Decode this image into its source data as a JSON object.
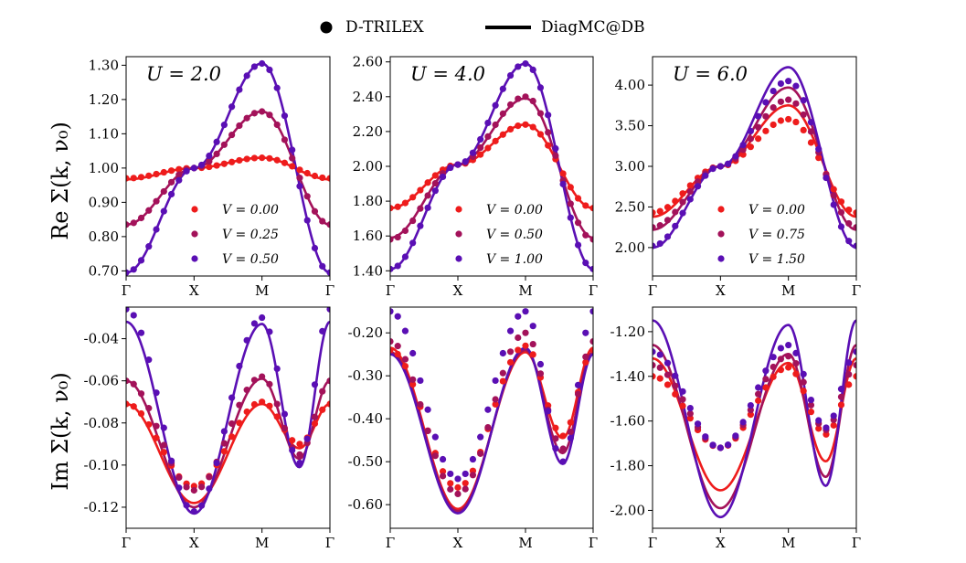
{
  "legend_top": {
    "markers_label": "D-TRILEX",
    "lines_label": "DiagMC@DB"
  },
  "row_labels": {
    "top": "Re Σ(k, ν₀)",
    "bottom": "Im Σ(k, ν₀)"
  },
  "colors": {
    "low": "#ee1c1c",
    "mid": "#a3125a",
    "high": "#5a0fb4"
  },
  "chart_data": [
    {
      "type": "line",
      "panel": "Re U=2.0",
      "annotation": "U = 2.0",
      "x_ticks": [
        "Γ",
        "X",
        "M",
        "Γ"
      ],
      "ylim": [
        0.685,
        1.325
      ],
      "y_ticks": [
        0.7,
        0.8,
        0.9,
        1.0,
        1.1,
        1.2,
        1.3
      ],
      "y_tick_labels": [
        "0.70",
        "0.80",
        "0.90",
        "1.00",
        "1.10",
        "1.20",
        "1.30"
      ],
      "legend_placement": "lower-right",
      "series": [
        {
          "name": "V = 0.00",
          "color": "low",
          "anchors": [
            0.967,
            1.0,
            1.03,
            0.967
          ],
          "markers": [
            0.97,
            1.0,
            1.03,
            0.97
          ]
        },
        {
          "name": "V = 0.25",
          "color": "mid",
          "anchors": [
            0.835,
            1.0,
            1.165,
            0.835
          ],
          "markers": [
            0.835,
            1.0,
            1.165,
            0.835
          ]
        },
        {
          "name": "V = 0.50",
          "color": "high",
          "anchors": [
            0.695,
            1.0,
            1.305,
            0.695
          ],
          "markers": [
            0.695,
            1.0,
            1.305,
            0.695
          ]
        }
      ]
    },
    {
      "type": "line",
      "panel": "Re U=4.0",
      "annotation": "U = 4.0",
      "x_ticks": [
        "Γ",
        "X",
        "M",
        "Γ"
      ],
      "ylim": [
        1.37,
        2.63
      ],
      "y_ticks": [
        1.4,
        1.6,
        1.8,
        2.0,
        2.2,
        2.4,
        2.6
      ],
      "y_tick_labels": [
        "1.40",
        "1.60",
        "1.80",
        "2.00",
        "2.20",
        "2.40",
        "2.60"
      ],
      "legend_placement": "lower-right",
      "series": [
        {
          "name": "V = 0.00",
          "color": "low",
          "anchors": [
            1.76,
            2.01,
            2.24,
            1.76
          ],
          "markers": [
            1.76,
            2.01,
            2.24,
            1.76
          ]
        },
        {
          "name": "V = 0.50",
          "color": "mid",
          "anchors": [
            1.59,
            2.01,
            2.39,
            1.59
          ],
          "markers": [
            1.58,
            2.01,
            2.4,
            1.58
          ]
        },
        {
          "name": "V = 1.00",
          "color": "high",
          "anchors": [
            1.41,
            2.01,
            2.59,
            1.41
          ],
          "markers": [
            1.41,
            2.01,
            2.59,
            1.41
          ]
        }
      ]
    },
    {
      "type": "line",
      "panel": "Re U=6.0",
      "annotation": "U = 6.0",
      "x_ticks": [
        "Γ",
        "X",
        "M",
        "Γ"
      ],
      "ylim": [
        1.65,
        4.35
      ],
      "y_ticks": [
        2.0,
        2.5,
        3.0,
        3.5,
        4.0
      ],
      "y_tick_labels": [
        "2.00",
        "2.50",
        "3.00",
        "3.50",
        "4.00"
      ],
      "legend_placement": "lower-right",
      "series": [
        {
          "name": "V = 0.00",
          "color": "low",
          "anchors": [
            2.38,
            3.0,
            3.75,
            2.38
          ],
          "markers": [
            2.43,
            3.0,
            3.58,
            2.43
          ]
        },
        {
          "name": "V = 0.75",
          "color": "mid",
          "anchors": [
            2.22,
            3.0,
            3.97,
            2.22
          ],
          "markers": [
            2.25,
            3.0,
            3.82,
            2.25
          ]
        },
        {
          "name": "V = 1.50",
          "color": "high",
          "anchors": [
            2.0,
            3.0,
            4.22,
            2.0
          ],
          "markers": [
            2.02,
            3.0,
            4.05,
            2.02
          ]
        }
      ]
    },
    {
      "type": "line",
      "panel": "Im U=2.0",
      "x_ticks": [
        "Γ",
        "X",
        "M",
        "Γ"
      ],
      "ylim": [
        -0.13,
        -0.025
      ],
      "y_ticks": [
        -0.12,
        -0.1,
        -0.08,
        -0.06,
        -0.04
      ],
      "y_tick_labels": [
        "-0.12",
        "-0.10",
        "-0.08",
        "-0.06",
        "-0.04"
      ],
      "series": [
        {
          "name": "V = 0.00",
          "color": "low",
          "anchors": [
            -0.071,
            -0.118,
            -0.071,
            -0.092,
            -0.071
          ],
          "markers": [
            -0.071,
            -0.11,
            -0.07,
            -0.09,
            -0.07
          ]
        },
        {
          "name": "V = 0.25",
          "color": "mid",
          "anchors": [
            -0.06,
            -0.12,
            -0.059,
            -0.097,
            -0.06
          ],
          "markers": [
            -0.06,
            -0.112,
            -0.058,
            -0.095,
            -0.06
          ]
        },
        {
          "name": "V = 0.50",
          "color": "high",
          "anchors": [
            -0.032,
            -0.123,
            -0.033,
            -0.101,
            -0.032
          ],
          "markers": [
            -0.026,
            -0.122,
            -0.03,
            -0.099,
            -0.026
          ]
        }
      ]
    },
    {
      "type": "line",
      "panel": "Im U=4.0",
      "x_ticks": [
        "Γ",
        "X",
        "M",
        "Γ"
      ],
      "ylim": [
        -0.655,
        -0.14
      ],
      "y_ticks": [
        -0.6,
        -0.5,
        -0.4,
        -0.3,
        -0.2
      ],
      "y_tick_labels": [
        "-0.60",
        "-0.50",
        "-0.40",
        "-0.30",
        "-0.20"
      ],
      "series": [
        {
          "name": "V = 0.00",
          "color": "low",
          "anchors": [
            -0.235,
            -0.61,
            -0.245,
            -0.445,
            -0.235
          ],
          "markers": [
            -0.24,
            -0.56,
            -0.23,
            -0.44,
            -0.24
          ]
        },
        {
          "name": "V = 0.50",
          "color": "mid",
          "anchors": [
            -0.245,
            -0.615,
            -0.24,
            -0.48,
            -0.245
          ],
          "markers": [
            -0.22,
            -0.575,
            -0.2,
            -0.47,
            -0.22
          ]
        },
        {
          "name": "V = 1.00",
          "color": "high",
          "anchors": [
            -0.25,
            -0.62,
            -0.235,
            -0.505,
            -0.25
          ],
          "markers": [
            -0.15,
            -0.54,
            -0.15,
            -0.5,
            -0.15
          ]
        }
      ]
    },
    {
      "type": "line",
      "panel": "Im U=6.0",
      "x_ticks": [
        "Γ",
        "X",
        "M",
        "Γ"
      ],
      "ylim": [
        -2.08,
        -1.09
      ],
      "y_ticks": [
        -2.0,
        -1.8,
        -1.6,
        -1.4,
        -1.2
      ],
      "y_tick_labels": [
        "-2.00",
        "-1.80",
        "-1.60",
        "-1.40",
        "-1.20"
      ],
      "series": [
        {
          "name": "V = 0.00",
          "color": "low",
          "anchors": [
            -1.32,
            -1.91,
            -1.34,
            -1.78,
            -1.32
          ],
          "markers": [
            -1.4,
            -1.72,
            -1.36,
            -1.66,
            -1.4
          ]
        },
        {
          "name": "V = 0.75",
          "color": "mid",
          "anchors": [
            -1.26,
            -1.99,
            -1.3,
            -1.85,
            -1.26
          ],
          "markers": [
            -1.35,
            -1.72,
            -1.31,
            -1.64,
            -1.35
          ]
        },
        {
          "name": "V = 1.50",
          "color": "high",
          "anchors": [
            -1.15,
            -2.03,
            -1.17,
            -1.89,
            -1.15
          ],
          "markers": [
            -1.29,
            -1.72,
            -1.26,
            -1.63,
            -1.29
          ]
        }
      ]
    }
  ]
}
